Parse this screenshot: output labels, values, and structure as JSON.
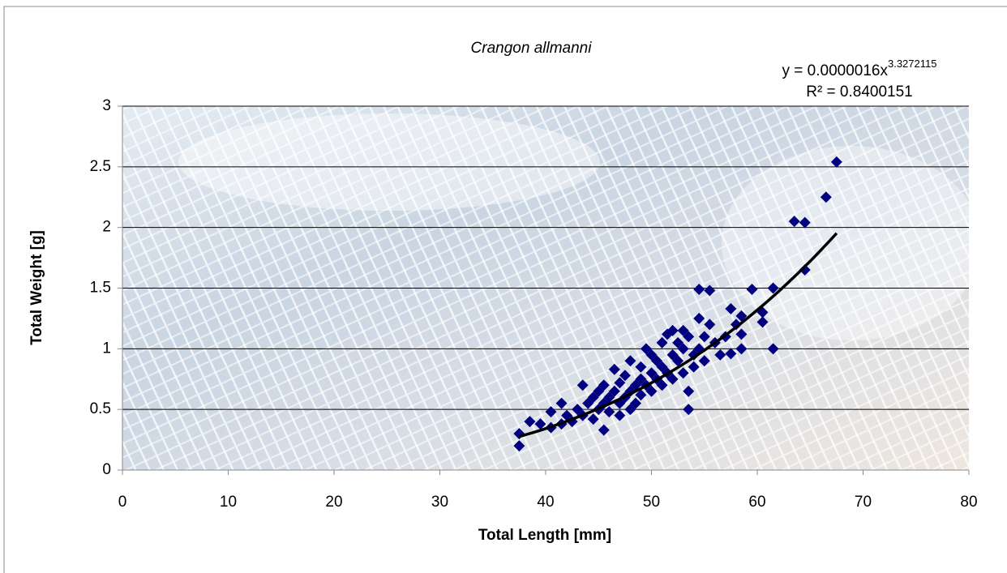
{
  "chart_data": {
    "type": "scatter",
    "title": "Crangon allmanni",
    "x_label": "Total Length [mm]",
    "y_label": "Total Weight [g]",
    "equation": {
      "text": "y = 0.0000016x",
      "exponent": "3.3272115"
    },
    "r_squared": "R² = 0.8400151",
    "trendline": {
      "type": "power",
      "coefficient": 1.6e-06,
      "exponent": 3.3272115,
      "x_range": [
        37.5,
        67.5
      ],
      "color": "#000000"
    },
    "color": "#000080",
    "x": [
      37.5,
      37.5,
      38.5,
      39.5,
      40.5,
      40.5,
      41.5,
      41.5,
      42,
      42.5,
      43,
      43.5,
      43.5,
      44,
      44.5,
      44.5,
      45,
      45,
      45.5,
      45.5,
      45.5,
      46,
      46,
      46.5,
      46.5,
      47,
      47,
      47,
      47.5,
      47.5,
      48,
      48,
      48,
      48.5,
      48.5,
      49,
      49,
      49,
      49.5,
      49.5,
      50,
      50,
      50,
      50.5,
      50.5,
      51,
      51,
      51,
      51.5,
      51.5,
      52,
      52,
      52,
      52.5,
      52.5,
      53,
      53,
      53,
      53.5,
      53.5,
      53.5,
      54,
      54,
      54.5,
      54.5,
      54.5,
      55,
      55,
      55.5,
      55.5,
      56,
      56.5,
      57,
      57.5,
      57.5,
      58,
      58.5,
      58.5,
      58.5,
      59.5,
      60.5,
      60.5,
      61.5,
      61.5,
      63.5,
      64.5,
      64.5,
      66.5,
      67.5
    ],
    "values": [
      0.2,
      0.3,
      0.4,
      0.38,
      0.35,
      0.48,
      0.38,
      0.55,
      0.45,
      0.4,
      0.5,
      0.7,
      0.45,
      0.55,
      0.6,
      0.42,
      0.5,
      0.65,
      0.33,
      0.55,
      0.7,
      0.6,
      0.48,
      0.65,
      0.83,
      0.55,
      0.72,
      0.45,
      0.6,
      0.78,
      0.5,
      0.65,
      0.9,
      0.7,
      0.55,
      0.75,
      0.62,
      0.85,
      1.0,
      0.7,
      0.8,
      0.65,
      0.95,
      0.75,
      0.9,
      0.85,
      1.05,
      0.7,
      1.12,
      0.8,
      0.95,
      0.75,
      1.15,
      0.9,
      1.05,
      1.0,
      0.8,
      1.15,
      0.5,
      0.65,
      1.1,
      0.95,
      0.85,
      1.25,
      1.49,
      1.0,
      1.1,
      0.9,
      1.48,
      1.2,
      1.05,
      0.95,
      1.1,
      1.33,
      0.96,
      1.2,
      1.27,
      1.0,
      1.12,
      1.49,
      1.3,
      1.22,
      1.5,
      1.0,
      2.05,
      2.04,
      1.65,
      2.25,
      2.54
    ],
    "xlim": [
      0,
      80
    ],
    "xticks": [
      0,
      10,
      20,
      30,
      40,
      50,
      60,
      70,
      80
    ],
    "ylim": [
      0,
      3
    ],
    "yticks": [
      0,
      0.5,
      1,
      1.5,
      2,
      2.5,
      3
    ],
    "grid": true
  }
}
